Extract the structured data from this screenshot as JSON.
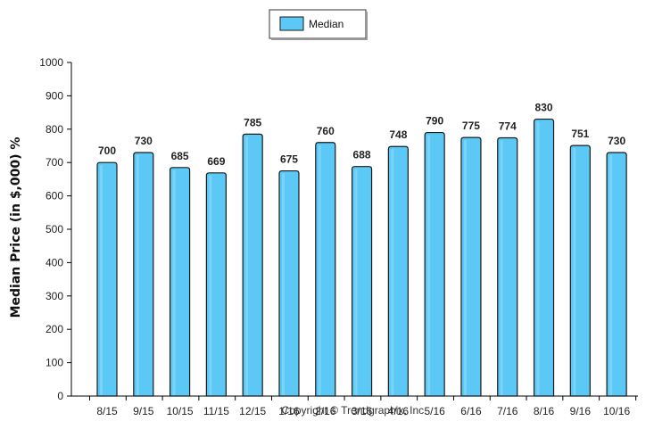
{
  "chart_data": {
    "type": "bar",
    "categories": [
      "8/15",
      "9/15",
      "10/15",
      "11/15",
      "12/15",
      "1/16",
      "2/16",
      "3/16",
      "4/16",
      "5/16",
      "6/16",
      "7/16",
      "8/16",
      "9/16",
      "10/16"
    ],
    "series": [
      {
        "name": "Median",
        "values": [
          700,
          730,
          685,
          669,
          785,
          675,
          760,
          688,
          748,
          790,
          775,
          774,
          830,
          751,
          730
        ],
        "color": "#5bc8f5"
      }
    ],
    "ylabel": "Median Price (in $,000) %",
    "ylim": [
      0,
      1000
    ],
    "yticks": [
      0,
      100,
      200,
      300,
      400,
      500,
      600,
      700,
      800,
      900,
      1000
    ],
    "grid": false,
    "legend_position": "top-center",
    "data_labels": true
  },
  "legend": {
    "label": "Median"
  },
  "footer": {
    "copyright": "Copyright © Trendgraphix, Inc."
  },
  "colors": {
    "bar_fill": "#5bc8f5",
    "bar_stroke": "#1a1a1a",
    "axis": "#000000"
  }
}
